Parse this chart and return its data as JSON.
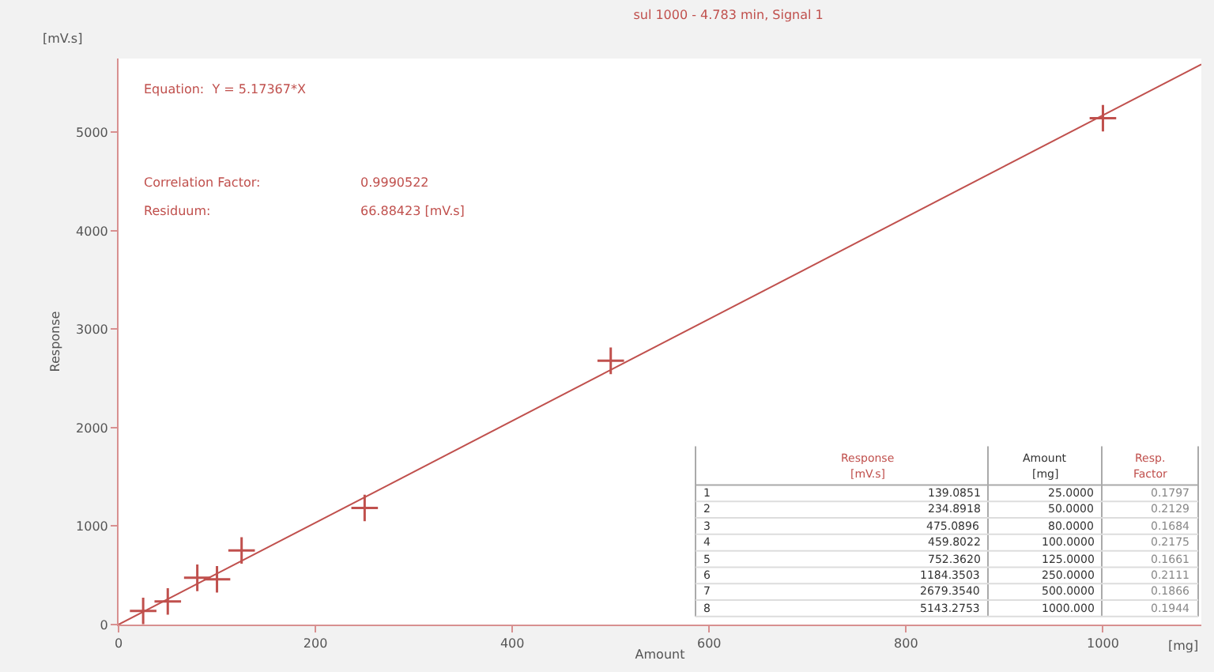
{
  "chart_data": {
    "type": "scatter",
    "title": "sul 1000 - 4.783 min, Signal 1",
    "xlabel": "Amount",
    "ylabel": "Response",
    "x": [
      25,
      50,
      80,
      100,
      125,
      250,
      500,
      1000
    ],
    "series": [
      {
        "color": "#c0504d",
        "marker": "cross",
        "values": [
          139.0851,
          234.8918,
          475.0896,
          459.8022,
          752.362,
          1184.3503,
          2679.354,
          5143.2753
        ]
      },
      {
        "type": "line",
        "color": "#c0504d",
        "x": [
          0,
          1100
        ],
        "values": [
          0,
          5691.0
        ],
        "line_style": "solid"
      }
    ],
    "xlim": [
      0,
      1100
    ],
    "xticks": [
      0,
      200,
      400,
      600,
      800,
      1000
    ],
    "ylim": [
      0,
      5750
    ],
    "yticks": [
      0,
      1000,
      2000,
      3000,
      4000,
      5000
    ],
    "annotations": [
      "Equation:  Y = 5.17367*X",
      "Correlation Factor:",
      "0.9990522",
      "Residuum:",
      "66.88423 [mV.s]",
      "[mV.s]",
      "[mg]",
      "Response",
      "[mV.s]",
      "Amount",
      "[mg]",
      "Resp.",
      "Factor",
      "1",
      "2",
      "3",
      "4",
      "5",
      "6",
      "7",
      "8",
      "0.1797",
      "0.2129",
      "0.1684",
      "0.2175",
      "0.1661",
      "0.2111",
      "0.1866",
      "0.1944",
      "139.0851",
      "234.8918",
      "475.0896",
      "459.8022",
      "752.3620",
      "1184.3503",
      "2679.3540",
      "5143.2753",
      "25.0000",
      "50.0000",
      "80.0000",
      "100.0000",
      "125.0000",
      "250.0000",
      "500.0000",
      "1000.000"
    ]
  }
}
